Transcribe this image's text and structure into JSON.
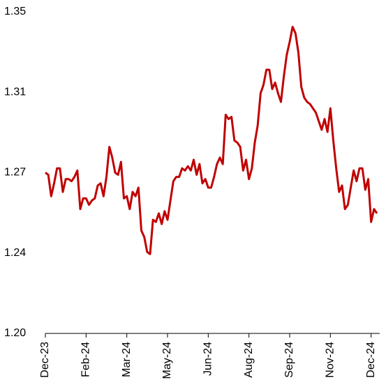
{
  "chart_data": {
    "type": "line",
    "categories": [
      "Dec-23",
      null,
      null,
      null,
      null,
      null,
      null,
      null,
      null,
      null,
      null,
      null,
      null,
      null,
      "Feb-24",
      null,
      null,
      null,
      null,
      null,
      null,
      null,
      null,
      null,
      null,
      null,
      null,
      null,
      "Mar-24",
      null,
      null,
      null,
      null,
      null,
      null,
      null,
      null,
      null,
      null,
      null,
      null,
      null,
      "May-24",
      null,
      null,
      null,
      null,
      null,
      null,
      null,
      null,
      null,
      null,
      null,
      null,
      null,
      "Jun-24",
      null,
      null,
      null,
      null,
      null,
      null,
      null,
      null,
      null,
      null,
      null,
      null,
      null,
      "Aug-24",
      null,
      null,
      null,
      null,
      null,
      null,
      null,
      null,
      null,
      null,
      null,
      null,
      null,
      "Sep-24",
      null,
      null,
      null,
      null,
      null,
      null,
      null,
      null,
      null,
      null,
      null,
      null,
      null,
      "Nov-24",
      null,
      null,
      null,
      null,
      null,
      null,
      null,
      null,
      null,
      null,
      null,
      null,
      null,
      "Dec-24",
      null,
      null
    ],
    "series": [
      {
        "color": "#c00000",
        "values": [
          1.275,
          1.274,
          1.264,
          1.27,
          1.277,
          1.277,
          1.266,
          1.272,
          1.272,
          1.271,
          1.273,
          1.276,
          1.258,
          1.263,
          1.263,
          1.26,
          1.262,
          1.263,
          1.269,
          1.27,
          1.264,
          1.273,
          1.287,
          1.282,
          1.275,
          1.274,
          1.28,
          1.263,
          1.264,
          1.258,
          1.266,
          1.264,
          1.268,
          1.248,
          1.245,
          1.238,
          1.237,
          1.253,
          1.252,
          1.256,
          1.251,
          1.257,
          1.253,
          1.262,
          1.271,
          1.273,
          1.273,
          1.277,
          1.276,
          1.278,
          1.276,
          1.281,
          1.274,
          1.279,
          1.27,
          1.272,
          1.268,
          1.268,
          1.273,
          1.279,
          1.282,
          1.279,
          1.302,
          1.3,
          1.301,
          1.29,
          1.289,
          1.287,
          1.276,
          1.281,
          1.272,
          1.277,
          1.289,
          1.297,
          1.312,
          1.316,
          1.323,
          1.323,
          1.314,
          1.317,
          1.312,
          1.308,
          1.32,
          1.33,
          1.336,
          1.343,
          1.34,
          1.331,
          1.315,
          1.31,
          1.308,
          1.307,
          1.305,
          1.303,
          1.299,
          1.295,
          1.3,
          1.294,
          1.305,
          1.29,
          1.277,
          1.266,
          1.269,
          1.258,
          1.26,
          1.268,
          1.276,
          1.271,
          1.277,
          1.277,
          1.267,
          1.272,
          1.252,
          1.258,
          1.256
        ]
      }
    ],
    "ylim": [
      1.2,
      1.35
    ],
    "yticks": [
      {
        "value": 1.2,
        "label": "1.20"
      },
      {
        "value": 1.2375,
        "label": "1.24"
      },
      {
        "value": 1.275,
        "label": "1.27"
      },
      {
        "value": 1.3125,
        "label": "1.31"
      },
      {
        "value": 1.35,
        "label": "1.35"
      }
    ]
  }
}
